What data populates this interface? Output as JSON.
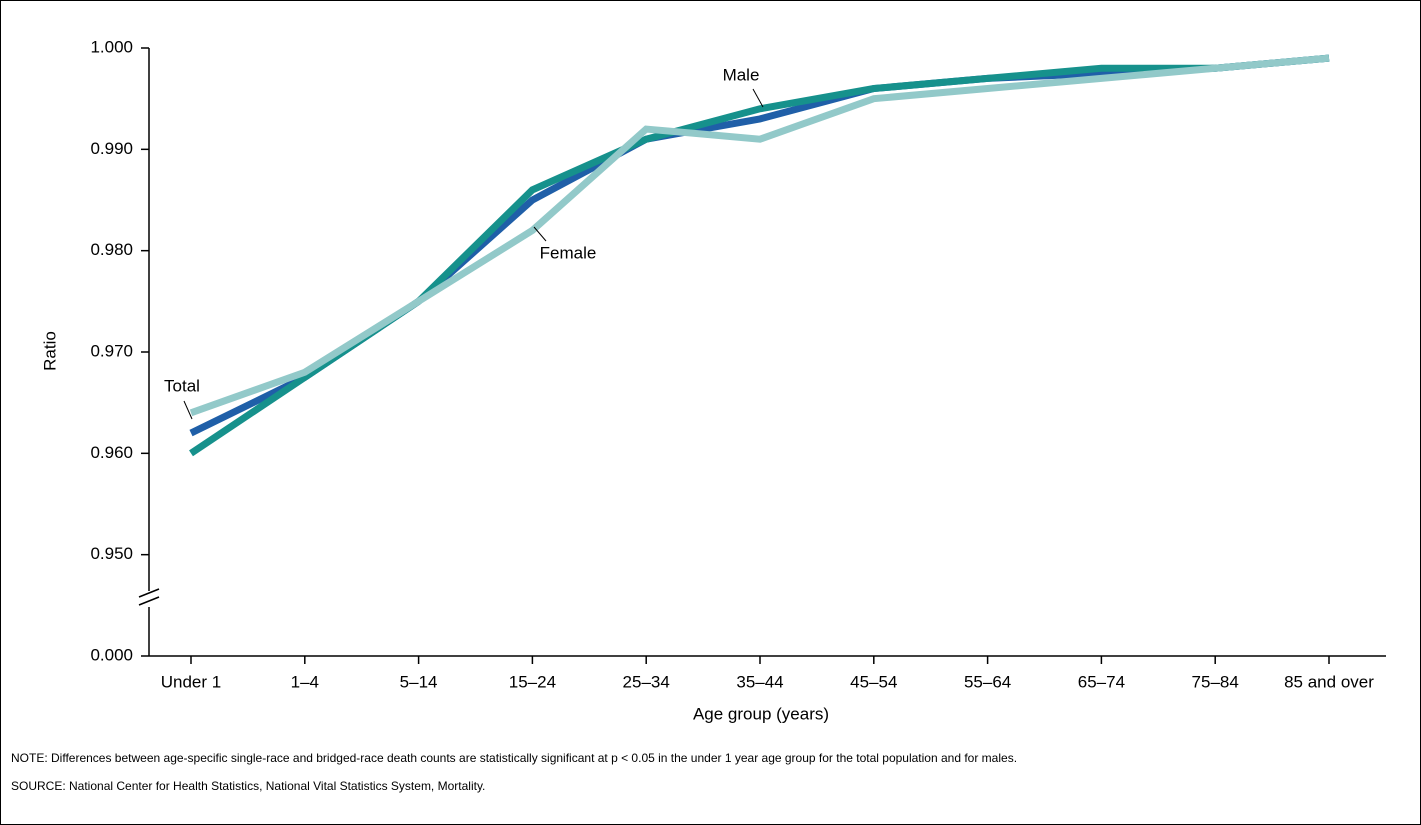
{
  "chart_data": {
    "type": "line",
    "x_label": "Age group (years)",
    "y_label": "Ratio",
    "categories": [
      "Under 1",
      "1–4",
      "5–14",
      "15–24",
      "25–34",
      "35–44",
      "45–54",
      "55–64",
      "65–74",
      "75–84",
      "85 and over"
    ],
    "series": [
      {
        "name": "Total",
        "color": "#1f5fa8",
        "values": [
          0.962,
          0.9675,
          0.975,
          0.985,
          0.991,
          0.993,
          0.996,
          0.997,
          0.9975,
          0.998,
          0.999
        ]
      },
      {
        "name": "Male",
        "color": "#16918c",
        "values": [
          0.96,
          0.9675,
          0.975,
          0.986,
          0.991,
          0.994,
          0.996,
          0.997,
          0.998,
          0.998,
          0.999
        ]
      },
      {
        "name": "Female",
        "color": "#92c9c9",
        "values": [
          0.964,
          0.968,
          0.975,
          0.982,
          0.992,
          0.991,
          0.995,
          0.996,
          0.997,
          0.998,
          0.999
        ]
      }
    ],
    "ylim": [
      0.94,
      1.0
    ],
    "axis_break": true,
    "yticks": [
      {
        "value": 0,
        "label": "0.000"
      },
      {
        "value": 0.95,
        "label": "0.950"
      },
      {
        "value": 0.96,
        "label": "0.960"
      },
      {
        "value": 0.97,
        "label": "0.970"
      },
      {
        "value": 0.98,
        "label": "0.980"
      },
      {
        "value": 0.99,
        "label": "0.990"
      },
      {
        "value": 1.0,
        "label": "1.000"
      }
    ],
    "note": "NOTE: Differences between age-specific single-race and bridged-race death counts are statistically significant at p < 0.05 in the under 1 year age group for the total population and for males.",
    "source": "SOURCE: National Center for Health Statistics, National Vital Statistics System, Mortality."
  }
}
